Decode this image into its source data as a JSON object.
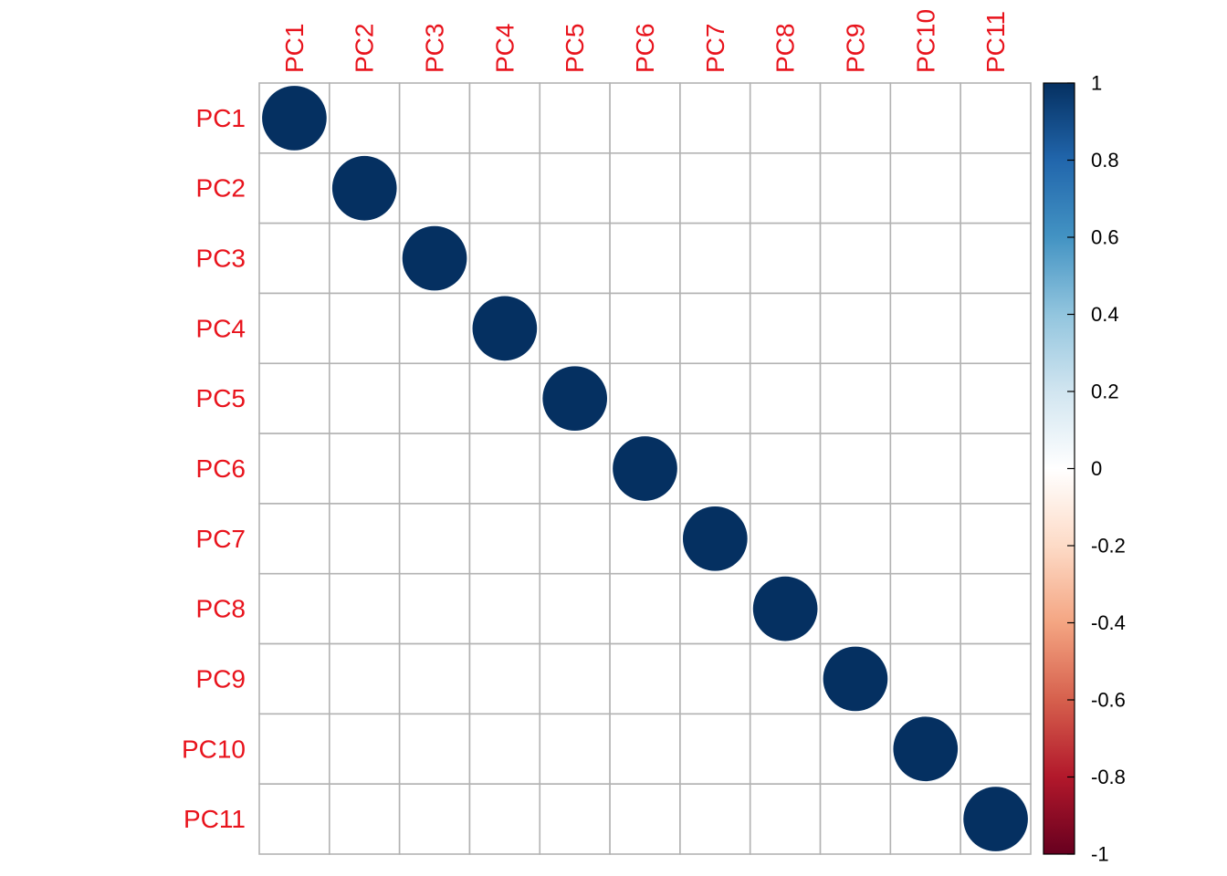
{
  "chart_data": {
    "type": "heatmap",
    "style": "corrplot-circle",
    "rows": [
      "PC1",
      "PC2",
      "PC3",
      "PC4",
      "PC5",
      "PC6",
      "PC7",
      "PC8",
      "PC9",
      "PC10",
      "PC11"
    ],
    "columns": [
      "PC1",
      "PC2",
      "PC3",
      "PC4",
      "PC5",
      "PC6",
      "PC7",
      "PC8",
      "PC9",
      "PC10",
      "PC11"
    ],
    "matrix": [
      [
        1,
        0,
        0,
        0,
        0,
        0,
        0,
        0,
        0,
        0,
        0
      ],
      [
        0,
        1,
        0,
        0,
        0,
        0,
        0,
        0,
        0,
        0,
        0
      ],
      [
        0,
        0,
        1,
        0,
        0,
        0,
        0,
        0,
        0,
        0,
        0
      ],
      [
        0,
        0,
        0,
        1,
        0,
        0,
        0,
        0,
        0,
        0,
        0
      ],
      [
        0,
        0,
        0,
        0,
        1,
        0,
        0,
        0,
        0,
        0,
        0
      ],
      [
        0,
        0,
        0,
        0,
        0,
        1,
        0,
        0,
        0,
        0,
        0
      ],
      [
        0,
        0,
        0,
        0,
        0,
        0,
        1,
        0,
        0,
        0,
        0
      ],
      [
        0,
        0,
        0,
        0,
        0,
        0,
        0,
        1,
        0,
        0,
        0
      ],
      [
        0,
        0,
        0,
        0,
        0,
        0,
        0,
        0,
        1,
        0,
        0
      ],
      [
        0,
        0,
        0,
        0,
        0,
        0,
        0,
        0,
        0,
        1,
        0
      ],
      [
        0,
        0,
        0,
        0,
        0,
        0,
        0,
        0,
        0,
        0,
        1
      ]
    ],
    "label_color": "#e8131c",
    "grid": true,
    "grid_color": "#b3b3b3",
    "colorbar": {
      "range": [
        -1,
        1
      ],
      "ticks": [
        "1",
        "0.8",
        "0.6",
        "0.4",
        "0.2",
        "0",
        "-0.2",
        "-0.4",
        "-0.6",
        "-0.8",
        "-1"
      ],
      "tick_values": [
        1,
        0.8,
        0.6,
        0.4,
        0.2,
        0,
        -0.2,
        -0.4,
        -0.6,
        -0.8,
        -1
      ],
      "colors": [
        "#67001f",
        "#b2182b",
        "#d6604d",
        "#f4a582",
        "#fddbc7",
        "#ffffff",
        "#d1e5f0",
        "#92c5de",
        "#4393c3",
        "#2166ac",
        "#053061"
      ],
      "placement": "right"
    }
  }
}
